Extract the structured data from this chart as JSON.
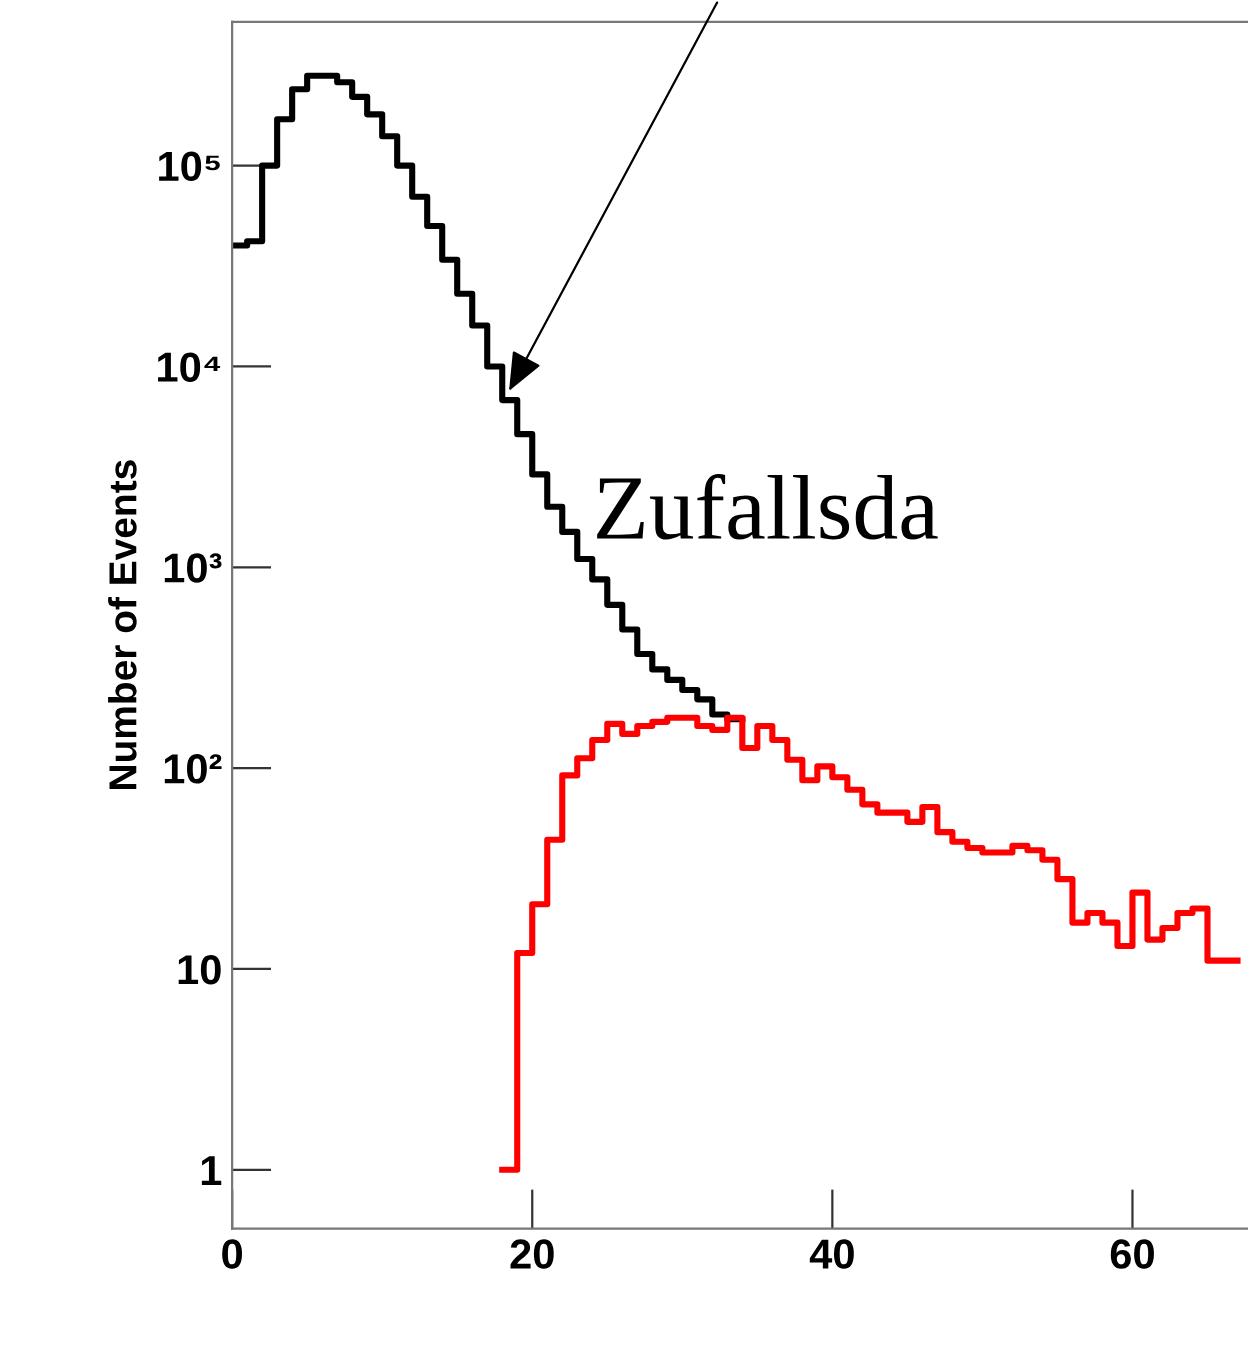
{
  "chart_data": {
    "type": "step",
    "ylabel": "Number of Events",
    "log": "y",
    "grid": false,
    "xlim": [
      0,
      67.7
    ],
    "xticks": [
      0,
      20,
      40,
      60
    ],
    "ylim": [
      0.51,
      520000
    ],
    "yticks": [
      1,
      10,
      {
        "value": 100,
        "label": "10²"
      },
      {
        "value": 1000,
        "label": "10³"
      },
      {
        "value": 10000,
        "label": "10⁴"
      },
      {
        "value": 100000,
        "label": "10⁵"
      }
    ],
    "series": [
      {
        "color": "#000000",
        "x": [
          0,
          1,
          2,
          3,
          4,
          5,
          6,
          7,
          8,
          9,
          10,
          11,
          12,
          13,
          14,
          15,
          16,
          17,
          18,
          19,
          20,
          21,
          22,
          23,
          24,
          25,
          26,
          27,
          28,
          29,
          30,
          31,
          32,
          33,
          34
        ],
        "values": [
          40000,
          42000,
          100000,
          170000,
          240000,
          280000,
          280000,
          260000,
          220000,
          180000,
          140000,
          100000,
          70000,
          50000,
          34000,
          23000,
          16000,
          10000,
          6800,
          4600,
          2900,
          2000,
          1500,
          1100,
          870,
          650,
          490,
          370,
          310,
          275,
          245,
          220,
          185,
          175,
          175
        ]
      },
      {
        "color": "#ff0000",
        "x": [
          18,
          19,
          20,
          21,
          22,
          23,
          24,
          25,
          26,
          27,
          28,
          29,
          30,
          31,
          32,
          33,
          34,
          35,
          36,
          37,
          38,
          39,
          40,
          41,
          42,
          43,
          44,
          45,
          46,
          47,
          48,
          49,
          50,
          51,
          52,
          53,
          54,
          55,
          56,
          57,
          58,
          59,
          60,
          61,
          62,
          63,
          64,
          65,
          66,
          67
        ],
        "values": [
          1,
          12,
          21,
          44,
          92,
          112,
          138,
          166,
          148,
          162,
          170,
          178,
          178,
          162,
          155,
          178,
          126,
          162,
          138,
          110,
          87,
          102,
          90,
          78,
          66,
          60,
          60,
          54,
          64,
          48,
          43,
          40,
          38,
          38,
          41,
          39,
          35,
          28,
          17,
          19,
          17,
          13,
          24,
          14,
          16,
          19,
          20,
          11,
          11,
          11
        ]
      }
    ],
    "annotations": [
      "Zufallsda"
    ]
  }
}
